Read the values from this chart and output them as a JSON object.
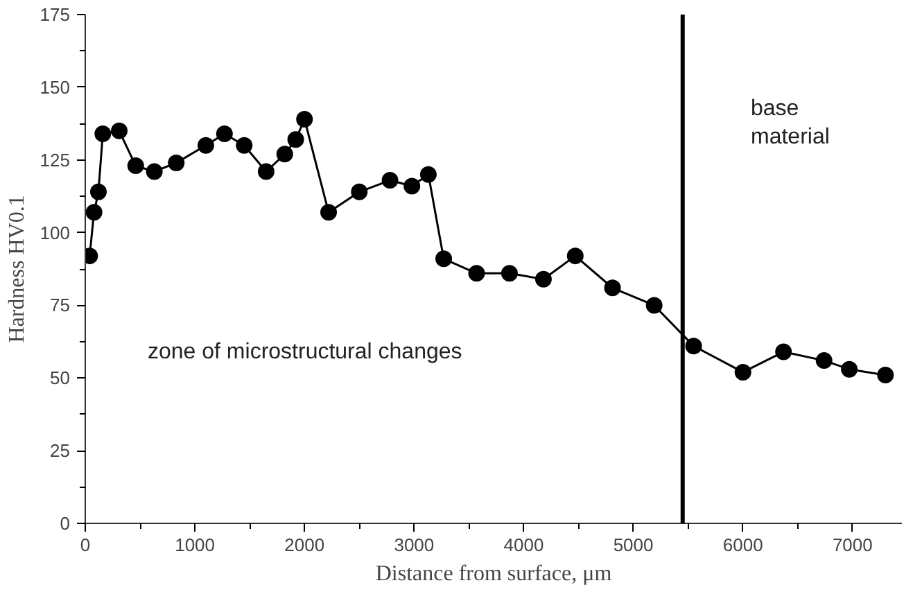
{
  "chart_data": {
    "type": "line",
    "xlabel": "Distance from surface, μm",
    "ylabel": "Hardness HV0.1",
    "x": [
      40,
      80,
      120,
      160,
      310,
      460,
      630,
      830,
      1100,
      1270,
      1450,
      1650,
      1820,
      1920,
      2000,
      2220,
      2500,
      2780,
      2980,
      3130,
      3270,
      3570,
      3870,
      4180,
      4470,
      4810,
      5190,
      5550,
      6000,
      6370,
      6740,
      6970,
      7300
    ],
    "series": [
      {
        "color": "#000000",
        "values": [
          92,
          107,
          114,
          134,
          135,
          123,
          121,
          124,
          130,
          134,
          130,
          121,
          127,
          132,
          139,
          107,
          114,
          118,
          116,
          120,
          91,
          86,
          86,
          84,
          92,
          81,
          75,
          61,
          52,
          59,
          56,
          53,
          51
        ]
      }
    ],
    "xlim": [
      0,
      7450
    ],
    "ylim": [
      0,
      175
    ],
    "xticks": [
      0,
      1000,
      2000,
      3000,
      4000,
      5000,
      6000,
      7000
    ],
    "yticks": [
      0,
      25,
      50,
      75,
      100,
      125,
      150,
      175
    ],
    "ref_lines": [
      {
        "axis": "x",
        "value": 5450,
        "color": "#000000"
      }
    ],
    "annotations": [
      "zone of microstructural changes",
      "base\nmaterial"
    ],
    "marker": "circle",
    "line_style": "solid"
  }
}
